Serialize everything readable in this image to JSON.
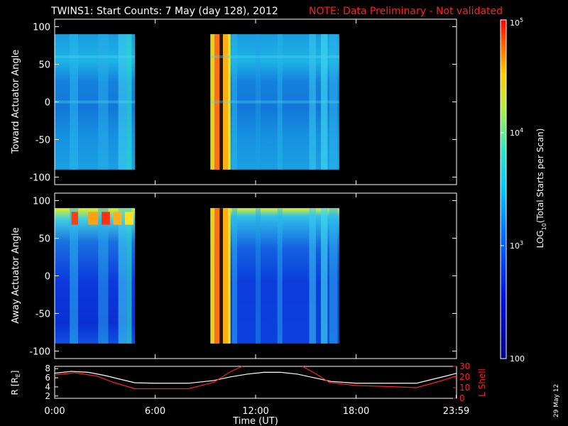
{
  "header": {
    "title": "TWINS1: Start Counts:  7 May (day 128), 2012",
    "note": "NOTE: Data Preliminary - Not validated"
  },
  "footer": {
    "date_stamp": "29 May 12"
  },
  "colors": {
    "background": "#000000",
    "axes": "#ffffff",
    "note": "#ff2020",
    "lshell": "#ff2020",
    "radius": "#ffffff"
  },
  "chart_data": [
    {
      "type": "heatmap",
      "ylabel": "Toward Actuator Angle",
      "ylim": [
        -110,
        110
      ],
      "yticks": [
        100,
        50,
        0,
        -50,
        -100
      ],
      "x_range_hours": [
        0,
        24
      ],
      "data_y_range": [
        -90,
        90
      ],
      "data_blocks_hours": [
        [
          0.0,
          4.8
        ],
        [
          9.3,
          17.0
        ]
      ],
      "colorscale": "log10",
      "note": "Mostly ~10^3 counts (cyan/blue); high counts (~10^5) near 9.4-10.4 UT"
    },
    {
      "type": "heatmap",
      "ylabel": "Away Actuator Angle",
      "ylim": [
        -110,
        110
      ],
      "yticks": [
        100,
        50,
        0,
        -50,
        -100
      ],
      "x_range_hours": [
        0,
        24
      ],
      "data_y_range": [
        -90,
        90
      ],
      "data_blocks_hours": [
        [
          0.0,
          4.8
        ],
        [
          9.3,
          17.0
        ]
      ],
      "colorscale": "log10",
      "note": "Hot spots near +70 to +85 deg from 1-4.5 UT; high counts near 9.4-10.4 UT"
    },
    {
      "type": "line",
      "xlabel": "Time (UT)",
      "xticks": [
        "0:00",
        "6:00",
        "12:00",
        "18:00",
        "23:59"
      ],
      "ylabel_left": "R [R",
      "ylabel_left_sub": "E",
      "ylabel_left_end": "]",
      "ylim_left": [
        1.5,
        8.5
      ],
      "yticks_left": [
        "8",
        "6",
        "4",
        "2"
      ],
      "ylabel_right": "L Shell",
      "ylim_right": [
        0,
        30
      ],
      "yticks_right": [
        "30",
        "20",
        "10",
        "0"
      ],
      "series": [
        {
          "axis": "left",
          "x": [
            0,
            1.0,
            2.0,
            3.0,
            4.0,
            4.8,
            6.0,
            8.0,
            9.5,
            10.5,
            11.5,
            12.5,
            13.5,
            14.5,
            15.5,
            16.5,
            18.0,
            20.0,
            21.6,
            22.5,
            23.5,
            24.0
          ],
          "y": [
            7.0,
            7.4,
            7.2,
            6.5,
            5.6,
            4.9,
            4.8,
            4.8,
            5.4,
            6.2,
            6.8,
            7.2,
            7.2,
            6.8,
            6.0,
            5.2,
            4.8,
            4.8,
            4.8,
            5.6,
            6.5,
            7.0
          ]
        },
        {
          "axis": "right",
          "x": [
            0,
            1.2,
            2.5,
            3.5,
            4.8,
            6.0,
            8.0,
            9.5,
            10.5,
            11.2
          ],
          "y": [
            22,
            24,
            21,
            15,
            9,
            9,
            9,
            15,
            25,
            31
          ]
        },
        {
          "axis": "right",
          "x": [
            14.8,
            15.6,
            16.4,
            18.0,
            20.0,
            21.6,
            23.0,
            24.0
          ],
          "y": [
            31,
            23,
            15,
            12,
            11,
            10,
            16,
            21
          ]
        }
      ]
    },
    {
      "type": "colorbar",
      "ylabel": "LOG",
      "ylabel_sub": "10",
      "ylabel_end": "(Total Starts per Scan)",
      "range": [
        100,
        100000
      ],
      "ticks": [
        {
          "value": 100000,
          "mantissa": "10",
          "exp": "5"
        },
        {
          "value": 10000,
          "mantissa": "10",
          "exp": "4"
        },
        {
          "value": 1000,
          "mantissa": "10",
          "exp": "3"
        },
        {
          "value": 100,
          "mantissa": "100",
          "exp": ""
        }
      ]
    }
  ]
}
